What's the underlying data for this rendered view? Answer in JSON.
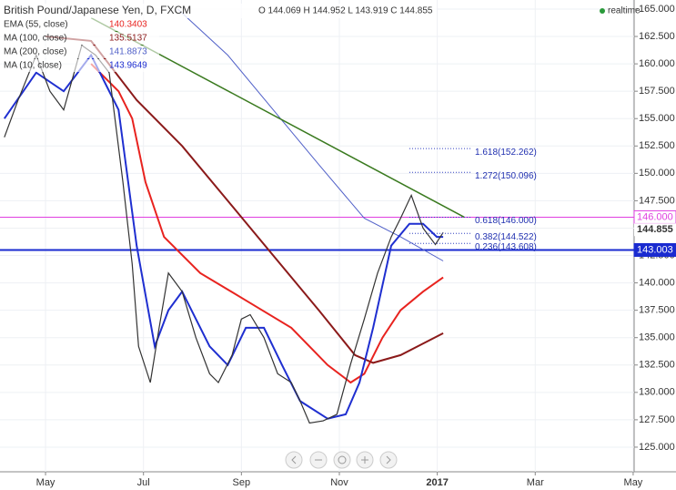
{
  "chart_data": {
    "type": "line",
    "title": "British Pound/Japanese Yen, D, FXCM",
    "ohlc": "O 144.069 H 144.952 L 143.919 C 144.855",
    "status": "realtime",
    "xlim": [
      -0.93,
      12.02
    ],
    "xticks": [
      {
        "value": 0,
        "label": "May"
      },
      {
        "value": 2,
        "label": "Jul"
      },
      {
        "value": 4,
        "label": "Sep"
      },
      {
        "value": 6,
        "label": "Nov"
      },
      {
        "value": 8,
        "label": "2017"
      },
      {
        "value": 10,
        "label": "Mar"
      },
      {
        "value": 12,
        "label": "May"
      }
    ],
    "ylim": [
      122.75,
      165.83
    ],
    "yticks": [
      {
        "value": 125,
        "label": "125.000"
      },
      {
        "value": 127.5,
        "label": "127.500"
      },
      {
        "value": 130,
        "label": "130.000"
      },
      {
        "value": 132.5,
        "label": "132.500"
      },
      {
        "value": 135,
        "label": "135.000"
      },
      {
        "value": 137.5,
        "label": "137.500"
      },
      {
        "value": 140,
        "label": "140.000"
      },
      {
        "value": 142.5,
        "label": "142.500"
      },
      {
        "value": 145,
        "label": "145.000"
      },
      {
        "value": 147.5,
        "label": "147.500"
      },
      {
        "value": 150,
        "label": "150.000"
      },
      {
        "value": 152.5,
        "label": "152.500"
      },
      {
        "value": 155,
        "label": "155.000"
      },
      {
        "value": 157.5,
        "label": "157.500"
      },
      {
        "value": 160,
        "label": "160.000"
      },
      {
        "value": 162.5,
        "label": "162.500"
      },
      {
        "value": 165,
        "label": "165.000"
      }
    ],
    "price": {
      "color": "#333333",
      "x": [
        -0.84,
        -0.56,
        -0.19,
        0.09,
        0.37,
        0.74,
        1.02,
        1.3,
        1.58,
        1.77,
        1.9,
        2.14,
        2.32,
        2.51,
        2.79,
        3.07,
        3.35,
        3.53,
        3.81,
        4.0,
        4.18,
        4.46,
        4.74,
        5.02,
        5.2,
        5.39,
        5.67,
        5.95,
        6.23,
        6.51,
        6.78,
        7.06,
        7.25,
        7.47,
        7.71,
        7.96,
        8.12
      ],
      "values": [
        153.3,
        156.7,
        160.8,
        157.5,
        155.8,
        161.7,
        160.8,
        159.2,
        149.2,
        141.7,
        134.2,
        130.9,
        135.9,
        140.9,
        139.2,
        135.0,
        131.7,
        130.9,
        133.4,
        136.7,
        137.1,
        135.0,
        131.7,
        130.9,
        129.2,
        127.2,
        127.4,
        128.0,
        132.6,
        136.7,
        140.9,
        144.2,
        145.9,
        148.0,
        145.0,
        143.5,
        144.6
      ]
    },
    "series": [
      {
        "name": "EMA (55, close)",
        "last": 140.3403,
        "color": "#e8231f",
        "width": 2,
        "x": [
          0.93,
          1.49,
          1.77,
          2.04,
          2.42,
          3.16,
          4.09,
          5.02,
          5.76,
          6.23,
          6.51,
          6.88,
          7.25,
          7.71,
          8.12
        ],
        "values": [
          160.0,
          157.5,
          155.0,
          149.2,
          144.2,
          140.9,
          138.4,
          135.9,
          132.5,
          130.9,
          131.7,
          135.0,
          137.5,
          139.2,
          140.5
        ]
      },
      {
        "name": "MA (100, close)",
        "last": 135.5137,
        "color": "#8b1a1a",
        "width": 2,
        "x": [
          0.0,
          0.93,
          1.86,
          2.79,
          3.72,
          4.65,
          5.58,
          6.32,
          6.69,
          7.25,
          8.12
        ],
        "values": [
          162.5,
          162.1,
          156.7,
          152.5,
          147.5,
          142.5,
          137.5,
          133.4,
          132.7,
          133.4,
          135.4
        ]
      },
      {
        "name": "MA (200, close)",
        "last": 141.8873,
        "color": "#5060c8",
        "width": 1,
        "x": [
          2.7,
          3.72,
          4.65,
          5.58,
          6.51,
          7.25,
          8.12
        ],
        "values": [
          165.0,
          160.8,
          155.8,
          150.8,
          145.9,
          144.2,
          142.0
        ]
      },
      {
        "name": "MA (10, close)",
        "last": 143.9649,
        "color": "#1f2fd0",
        "width": 2,
        "x": [
          -0.84,
          -0.19,
          0.37,
          0.93,
          1.49,
          1.86,
          2.23,
          2.51,
          2.79,
          3.35,
          3.72,
          4.09,
          4.46,
          4.83,
          5.2,
          5.76,
          6.13,
          6.41,
          6.69,
          7.06,
          7.43,
          7.71,
          7.99,
          8.12
        ],
        "values": [
          155.0,
          159.2,
          157.5,
          160.8,
          155.8,
          143.4,
          134.2,
          137.5,
          139.2,
          134.2,
          132.5,
          135.9,
          135.9,
          132.5,
          129.2,
          127.6,
          128.0,
          130.9,
          135.9,
          143.4,
          145.4,
          145.4,
          144.2,
          144.2
        ]
      }
    ],
    "trendline": {
      "color": "#3a7a1f",
      "x": [
        0.93,
        8.55
      ],
      "values": [
        164.2,
        146.0
      ]
    },
    "levels": [
      {
        "value": 146.0,
        "label": "146.000",
        "color": "#e040e0"
      },
      {
        "value": 143.003,
        "label": "143.003",
        "color": "#1a2bd0"
      }
    ],
    "last_price": {
      "value": 144.855,
      "label": "144.855"
    },
    "fib_levels": [
      {
        "value": 152.262,
        "label": "1.618(152.262)"
      },
      {
        "value": 150.096,
        "label": "1.272(150.096)"
      },
      {
        "value": 146.0,
        "label": "0.618(146.000)"
      },
      {
        "value": 144.522,
        "label": "0.382(144.522)"
      },
      {
        "value": 143.608,
        "label": "0.236(143.608)"
      }
    ]
  }
}
